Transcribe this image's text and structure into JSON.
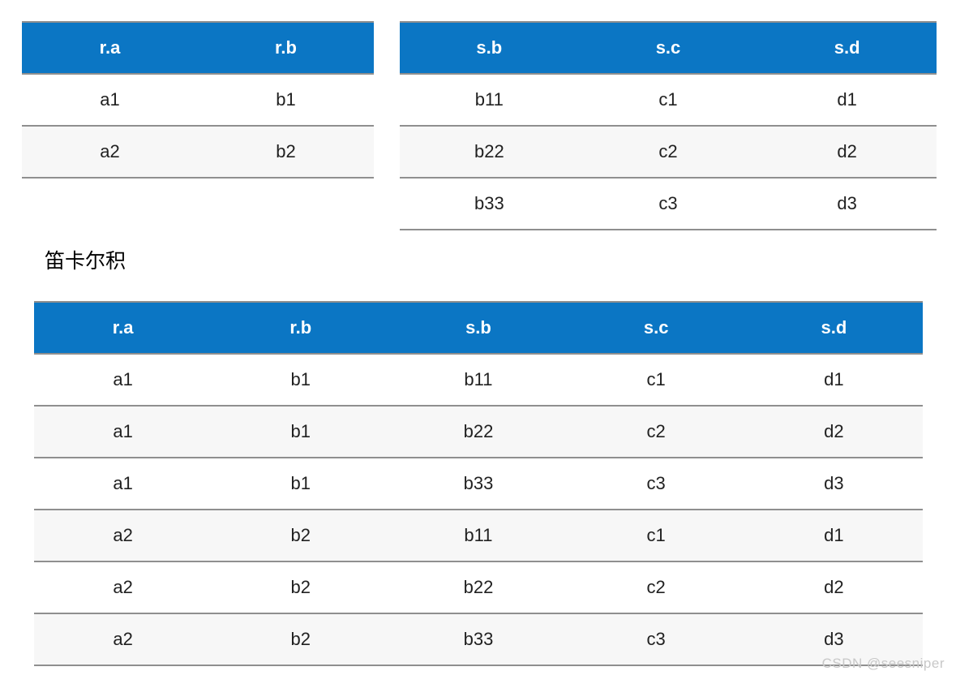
{
  "colors": {
    "header_bg": "#0b76c4",
    "header_text": "#ffffff",
    "row_bg": "#ffffff",
    "row_alt_bg": "#f7f7f7",
    "border": "#8f8f8f",
    "cell_text": "#212121",
    "label_text": "#000000",
    "watermark_text": "#c8c8c8"
  },
  "table_r": {
    "headers": [
      "r.a",
      "r.b"
    ],
    "rows": [
      [
        "a1",
        "b1"
      ],
      [
        "a2",
        "b2"
      ]
    ]
  },
  "table_s": {
    "headers": [
      "s.b",
      "s.c",
      "s.d"
    ],
    "rows": [
      [
        "b11",
        "c1",
        "d1"
      ],
      [
        "b22",
        "c2",
        "d2"
      ],
      [
        "b33",
        "c3",
        "d3"
      ]
    ]
  },
  "section_label": "笛卡尔积",
  "table_product": {
    "headers": [
      "r.a",
      "r.b",
      "s.b",
      "s.c",
      "s.d"
    ],
    "rows": [
      [
        "a1",
        "b1",
        "b11",
        "c1",
        "d1"
      ],
      [
        "a1",
        "b1",
        "b22",
        "c2",
        "d2"
      ],
      [
        "a1",
        "b1",
        "b33",
        "c3",
        "d3"
      ],
      [
        "a2",
        "b2",
        "b11",
        "c1",
        "d1"
      ],
      [
        "a2",
        "b2",
        "b22",
        "c2",
        "d2"
      ],
      [
        "a2",
        "b2",
        "b33",
        "c3",
        "d3"
      ]
    ]
  },
  "watermark": "CSDN @seesniper"
}
